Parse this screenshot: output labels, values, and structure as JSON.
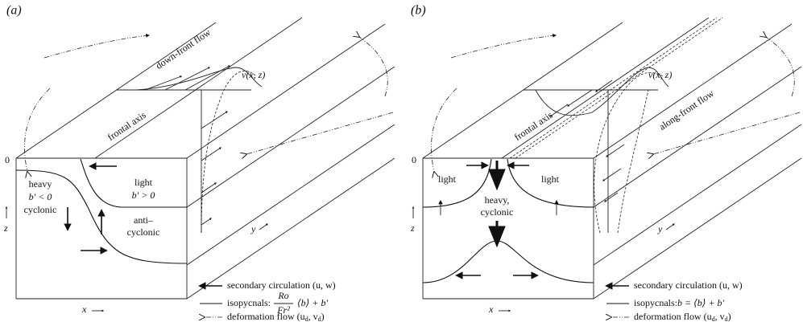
{
  "panels": [
    {
      "label": "(a)",
      "flow_label": "down-front flow",
      "profile_label": "v(x, z)",
      "axis_label": "frontal axis",
      "depth_zero": "0",
      "regions": [
        "heavy",
        "b′ < 0",
        "cyclonic",
        "light",
        "b′ > 0",
        "anti–",
        "cyclonic"
      ],
      "axes": {
        "x": "x",
        "y": "y",
        "z": "z"
      },
      "legend": {
        "circulation": "secondary circulation (u, w)",
        "isopycnals": {
          "name": "isopycnals:",
          "numerator": "Ro",
          "denominator": "Fr²",
          "rest": "⟨b⟩ + b′"
        },
        "deformation": [
          "deformation flow (u",
          "d",
          ", v",
          "d",
          ")"
        ]
      }
    },
    {
      "label": "(b)",
      "flow_label": "along-front flow",
      "profile_label": "v(x, z)",
      "axis_label": "frontal axis",
      "depth_zero": "0",
      "regions": [
        "light",
        "heavy,",
        "cyclonic",
        "light"
      ],
      "axes": {
        "x": "x",
        "y": "y",
        "z": "z"
      },
      "legend": {
        "circulation": "secondary circulation (u, w)",
        "isopycnals": {
          "name": "isopycnals:",
          "rest": "b = ⟨b⟩ + b′"
        },
        "deformation": [
          "deformation flow (u",
          "d",
          ", v",
          "d",
          ")"
        ]
      }
    }
  ]
}
